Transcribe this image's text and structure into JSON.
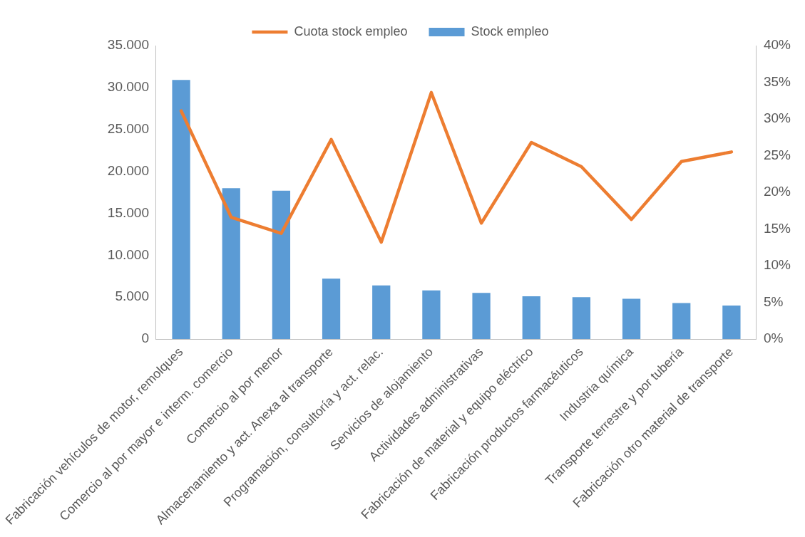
{
  "chart_data": {
    "type": "bar",
    "categories": [
      "Fabricación vehículos de motor, remolques",
      "Comercio al por mayor e interm. comercio",
      "Comercio al por menor",
      "Almacenamiento y act. Anexa al transporte",
      "Programación, consultoría y act. relac.",
      "Servicios de alojamiento",
      "Actividades administrativas",
      "Fabricación de material y equipo eléctrico",
      "Fabricación productos farmacéuticos",
      "Industria química",
      "Transporte terrestre y por tubería",
      "Fabricación otro material de transporte"
    ],
    "series": [
      {
        "name": "Stock empleo",
        "color": "#5b9bd5",
        "values": [
          30900,
          18000,
          17700,
          7200,
          6400,
          5800,
          5500,
          5100,
          5000,
          4800,
          4300,
          4000
        ]
      },
      {
        "name": "Cuota stock empleo",
        "color": "#ed7d31",
        "type": "line",
        "axis": "y2",
        "values": [
          31.1,
          16.6,
          14.4,
          27.2,
          13.2,
          33.6,
          15.8,
          26.8,
          23.5,
          16.3,
          24.2,
          25.5
        ]
      }
    ],
    "ylim": [
      0,
      35000
    ],
    "yticks": [
      {
        "value": 0,
        "label": "0"
      },
      {
        "value": 5000,
        "label": "5.000"
      },
      {
        "value": 10000,
        "label": "10.000"
      },
      {
        "value": 15000,
        "label": "15.000"
      },
      {
        "value": 20000,
        "label": "20.000"
      },
      {
        "value": 25000,
        "label": "25.000"
      },
      {
        "value": 30000,
        "label": "30.000"
      },
      {
        "value": 35000,
        "label": "35.000"
      }
    ],
    "y2lim": [
      0,
      40
    ],
    "y2ticks": [
      {
        "value": 0,
        "label": "0%"
      },
      {
        "value": 5,
        "label": "5%"
      },
      {
        "value": 10,
        "label": "10%"
      },
      {
        "value": 15,
        "label": "15%"
      },
      {
        "value": 20,
        "label": "20%"
      },
      {
        "value": 25,
        "label": "25%"
      },
      {
        "value": 30,
        "label": "30%"
      },
      {
        "value": 35,
        "label": "35%"
      },
      {
        "value": 40,
        "label": "40%"
      }
    ],
    "legend": "top",
    "grid": false,
    "marker": "none"
  }
}
